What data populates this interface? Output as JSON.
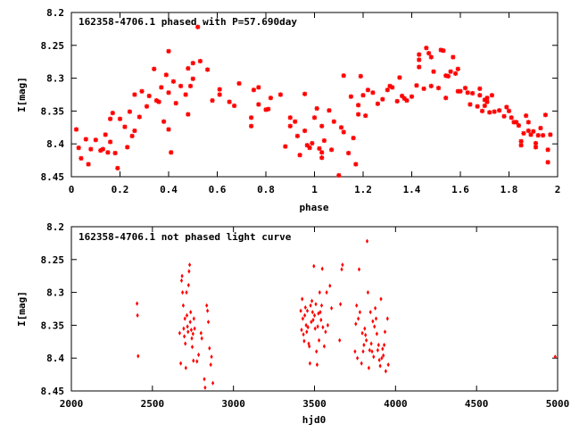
{
  "chart_data": [
    {
      "type": "scatter",
      "title": "162358-4706.1 phased with P=57.690day",
      "xlabel": "phase",
      "ylabel": "I[mag]",
      "xlim": [
        0,
        2
      ],
      "ylim": [
        8.2,
        8.45
      ],
      "y_inverted": true,
      "xticks": [
        0,
        0.2,
        0.4,
        0.6,
        0.8,
        1,
        1.2,
        1.4,
        1.6,
        1.8,
        2
      ],
      "xtick_labels": [
        "0",
        "0.2",
        "0.4",
        "0.6",
        "0.8",
        "1",
        "1.2",
        "1.4",
        "1.6",
        "1.8",
        "2"
      ],
      "yticks": [
        8.2,
        8.25,
        8.3,
        8.35,
        8.4,
        8.45
      ],
      "ytick_labels": [
        "8.2",
        "8.25",
        "8.3",
        "8.35",
        "8.4",
        "8.45"
      ],
      "grid": false,
      "marker": "star",
      "color": "#ff0000",
      "points": [
        [
          0.02,
          8.378
        ],
        [
          0.03,
          8.406
        ],
        [
          0.04,
          8.422
        ],
        [
          0.06,
          8.393
        ],
        [
          0.07,
          8.431
        ],
        [
          0.08,
          8.408
        ],
        [
          0.1,
          8.394
        ],
        [
          0.12,
          8.41
        ],
        [
          0.13,
          8.408
        ],
        [
          0.14,
          8.386
        ],
        [
          0.15,
          8.413
        ],
        [
          0.16,
          8.362
        ],
        [
          0.16,
          8.397
        ],
        [
          0.17,
          8.353
        ],
        [
          0.18,
          8.414
        ],
        [
          0.19,
          8.437
        ],
        [
          0.2,
          8.362
        ],
        [
          0.22,
          8.374
        ],
        [
          0.23,
          8.405
        ],
        [
          0.24,
          8.351
        ],
        [
          0.25,
          8.388
        ],
        [
          0.26,
          8.38
        ],
        [
          0.26,
          8.325
        ],
        [
          0.28,
          8.359
        ],
        [
          0.29,
          8.32
        ],
        [
          0.31,
          8.343
        ],
        [
          0.32,
          8.327
        ],
        [
          0.34,
          8.286
        ],
        [
          0.35,
          8.334
        ],
        [
          0.36,
          8.336
        ],
        [
          0.37,
          8.314
        ],
        [
          0.38,
          8.366
        ],
        [
          0.39,
          8.295
        ],
        [
          0.4,
          8.378
        ],
        [
          0.4,
          8.322
        ],
        [
          0.4,
          8.259
        ],
        [
          0.41,
          8.413
        ],
        [
          0.42,
          8.305
        ],
        [
          0.43,
          8.338
        ],
        [
          0.45,
          8.312
        ],
        [
          0.47,
          8.325
        ],
        [
          0.48,
          8.285
        ],
        [
          0.48,
          8.355
        ],
        [
          0.49,
          8.312
        ],
        [
          0.5,
          8.301
        ],
        [
          0.5,
          8.277
        ],
        [
          0.52,
          8.222
        ],
        [
          0.53,
          8.274
        ],
        [
          0.56,
          8.287
        ],
        [
          0.58,
          8.334
        ],
        [
          0.61,
          8.317
        ],
        [
          0.61,
          8.325
        ],
        [
          0.65,
          8.336
        ],
        [
          0.67,
          8.342
        ],
        [
          0.69,
          8.308
        ],
        [
          0.74,
          8.36
        ],
        [
          0.74,
          8.373
        ],
        [
          0.75,
          8.318
        ],
        [
          0.77,
          8.314
        ],
        [
          0.77,
          8.34
        ],
        [
          0.8,
          8.348
        ],
        [
          0.81,
          8.347
        ],
        [
          0.82,
          8.33
        ],
        [
          0.86,
          8.325
        ],
        [
          0.88,
          8.404
        ],
        [
          0.9,
          8.36
        ],
        [
          0.9,
          8.373
        ],
        [
          0.92,
          8.366
        ],
        [
          0.93,
          8.388
        ],
        [
          0.94,
          8.417
        ],
        [
          0.96,
          8.324
        ],
        [
          0.96,
          8.38
        ],
        [
          0.97,
          8.402
        ],
        [
          0.98,
          8.406
        ],
        [
          0.99,
          8.399
        ],
        [
          1.0,
          8.36
        ],
        [
          1.01,
          8.346
        ],
        [
          1.02,
          8.407
        ],
        [
          1.03,
          8.373
        ],
        [
          1.03,
          8.413
        ],
        [
          1.03,
          8.421
        ],
        [
          1.04,
          8.395
        ],
        [
          1.06,
          8.349
        ],
        [
          1.07,
          8.409
        ],
        [
          1.08,
          8.366
        ],
        [
          1.1,
          8.448
        ],
        [
          1.11,
          8.375
        ],
        [
          1.12,
          8.382
        ],
        [
          1.12,
          8.296
        ],
        [
          1.14,
          8.414
        ],
        [
          1.15,
          8.328
        ],
        [
          1.16,
          8.391
        ],
        [
          1.17,
          8.431
        ],
        [
          1.18,
          8.355
        ],
        [
          1.18,
          8.341
        ],
        [
          1.19,
          8.297
        ],
        [
          1.2,
          8.326
        ],
        [
          1.21,
          8.357
        ],
        [
          1.22,
          8.318
        ],
        [
          1.24,
          8.322
        ],
        [
          1.26,
          8.339
        ],
        [
          1.28,
          8.332
        ],
        [
          1.3,
          8.318
        ],
        [
          1.31,
          8.312
        ],
        [
          1.32,
          8.314
        ],
        [
          1.34,
          8.335
        ],
        [
          1.35,
          8.299
        ],
        [
          1.36,
          8.327
        ],
        [
          1.37,
          8.331
        ],
        [
          1.38,
          8.334
        ],
        [
          1.4,
          8.328
        ],
        [
          1.42,
          8.311
        ],
        [
          1.43,
          8.264
        ],
        [
          1.43,
          8.283
        ],
        [
          1.43,
          8.272
        ],
        [
          1.45,
          8.316
        ],
        [
          1.46,
          8.254
        ],
        [
          1.47,
          8.262
        ],
        [
          1.48,
          8.268
        ],
        [
          1.48,
          8.312
        ],
        [
          1.49,
          8.29
        ],
        [
          1.51,
          8.315
        ],
        [
          1.52,
          8.257
        ],
        [
          1.53,
          8.258
        ],
        [
          1.54,
          8.296
        ],
        [
          1.54,
          8.33
        ],
        [
          1.55,
          8.297
        ],
        [
          1.56,
          8.29
        ],
        [
          1.57,
          8.268
        ],
        [
          1.58,
          8.293
        ],
        [
          1.59,
          8.32
        ],
        [
          1.59,
          8.286
        ],
        [
          1.6,
          8.32
        ],
        [
          1.62,
          8.315
        ],
        [
          1.63,
          8.322
        ],
        [
          1.64,
          8.34
        ],
        [
          1.65,
          8.323
        ],
        [
          1.67,
          8.343
        ],
        [
          1.68,
          8.326
        ],
        [
          1.68,
          8.316
        ],
        [
          1.69,
          8.35
        ],
        [
          1.7,
          8.333
        ],
        [
          1.7,
          8.342
        ],
        [
          1.71,
          8.336
        ],
        [
          1.71,
          8.33
        ],
        [
          1.72,
          8.352
        ],
        [
          1.73,
          8.326
        ],
        [
          1.74,
          8.351
        ],
        [
          1.76,
          8.349
        ],
        [
          1.78,
          8.358
        ],
        [
          1.79,
          8.344
        ],
        [
          1.8,
          8.35
        ],
        [
          1.81,
          8.36
        ],
        [
          1.82,
          8.367
        ],
        [
          1.83,
          8.367
        ],
        [
          1.84,
          8.372
        ],
        [
          1.85,
          8.396
        ],
        [
          1.85,
          8.402
        ],
        [
          1.86,
          8.384
        ],
        [
          1.87,
          8.357
        ],
        [
          1.88,
          8.367
        ],
        [
          1.88,
          8.38
        ],
        [
          1.89,
          8.386
        ],
        [
          1.9,
          8.381
        ],
        [
          1.91,
          8.399
        ],
        [
          1.91,
          8.405
        ],
        [
          1.92,
          8.387
        ],
        [
          1.93,
          8.376
        ],
        [
          1.94,
          8.387
        ],
        [
          1.95,
          8.356
        ],
        [
          1.96,
          8.409
        ],
        [
          1.96,
          8.428
        ],
        [
          1.97,
          8.386
        ]
      ]
    },
    {
      "type": "scatter",
      "title": "162358-4706.1 not phased light curve",
      "xlabel": "hjd0",
      "ylabel": "I[mag]",
      "xlim": [
        2000,
        5000
      ],
      "ylim": [
        8.2,
        8.45
      ],
      "y_inverted": true,
      "xticks": [
        2000,
        2500,
        3000,
        3500,
        4000,
        4500,
        5000
      ],
      "xtick_labels": [
        "2000",
        "2500",
        "3000",
        "3500",
        "4000",
        "4500",
        "5000"
      ],
      "yticks": [
        8.2,
        8.25,
        8.3,
        8.35,
        8.4,
        8.45
      ],
      "ytick_labels": [
        "8.2",
        "8.25",
        "8.3",
        "8.35",
        "8.4",
        "8.45"
      ],
      "grid": false,
      "marker": "diamond",
      "color": "#ff0000",
      "points": [
        [
          2405,
          8.317
        ],
        [
          2408,
          8.335
        ],
        [
          2412,
          8.397
        ],
        [
          2668,
          8.362
        ],
        [
          2675,
          8.408
        ],
        [
          2680,
          8.282
        ],
        [
          2683,
          8.275
        ],
        [
          2686,
          8.3
        ],
        [
          2690,
          8.32
        ],
        [
          2693,
          8.355
        ],
        [
          2697,
          8.367
        ],
        [
          2700,
          8.34
        ],
        [
          2703,
          8.378
        ],
        [
          2706,
          8.415
        ],
        [
          2710,
          8.3
        ],
        [
          2713,
          8.335
        ],
        [
          2716,
          8.352
        ],
        [
          2720,
          8.36
        ],
        [
          2723,
          8.289
        ],
        [
          2726,
          8.268
        ],
        [
          2730,
          8.258
        ],
        [
          2733,
          8.345
        ],
        [
          2736,
          8.33
        ],
        [
          2740,
          8.357
        ],
        [
          2743,
          8.37
        ],
        [
          2746,
          8.383
        ],
        [
          2750,
          8.363
        ],
        [
          2753,
          8.404
        ],
        [
          2756,
          8.34
        ],
        [
          2760,
          8.355
        ],
        [
          2775,
          8.405
        ],
        [
          2785,
          8.395
        ],
        [
          2800,
          8.362
        ],
        [
          2805,
          8.37
        ],
        [
          2820,
          8.432
        ],
        [
          2825,
          8.445
        ],
        [
          2835,
          8.32
        ],
        [
          2840,
          8.328
        ],
        [
          2845,
          8.345
        ],
        [
          2852,
          8.385
        ],
        [
          2860,
          8.41
        ],
        [
          2865,
          8.398
        ],
        [
          2873,
          8.438
        ],
        [
          3415,
          8.328
        ],
        [
          3420,
          8.357
        ],
        [
          3424,
          8.31
        ],
        [
          3428,
          8.34
        ],
        [
          3432,
          8.364
        ],
        [
          3436,
          8.374
        ],
        [
          3440,
          8.335
        ],
        [
          3444,
          8.323
        ],
        [
          3448,
          8.35
        ],
        [
          3452,
          8.36
        ],
        [
          3456,
          8.328
        ],
        [
          3460,
          8.353
        ],
        [
          3464,
          8.378
        ],
        [
          3468,
          8.382
        ],
        [
          3472,
          8.408
        ],
        [
          3476,
          8.32
        ],
        [
          3480,
          8.345
        ],
        [
          3484,
          8.313
        ],
        [
          3488,
          8.33
        ],
        [
          3492,
          8.342
        ],
        [
          3496,
          8.26
        ],
        [
          3500,
          8.335
        ],
        [
          3504,
          8.355
        ],
        [
          3508,
          8.318
        ],
        [
          3512,
          8.39
        ],
        [
          3516,
          8.41
        ],
        [
          3520,
          8.352
        ],
        [
          3524,
          8.332
        ],
        [
          3528,
          8.373
        ],
        [
          3532,
          8.3
        ],
        [
          3536,
          8.33
        ],
        [
          3540,
          8.342
        ],
        [
          3544,
          8.32
        ],
        [
          3548,
          8.264
        ],
        [
          3552,
          8.353
        ],
        [
          3560,
          8.382
        ],
        [
          3568,
          8.36
        ],
        [
          3575,
          8.3
        ],
        [
          3582,
          8.35
        ],
        [
          3595,
          8.29
        ],
        [
          3605,
          8.324
        ],
        [
          3655,
          8.373
        ],
        [
          3660,
          8.318
        ],
        [
          3668,
          8.265
        ],
        [
          3673,
          8.258
        ],
        [
          3750,
          8.39
        ],
        [
          3755,
          8.348
        ],
        [
          3760,
          8.32
        ],
        [
          3765,
          8.4
        ],
        [
          3770,
          8.34
        ],
        [
          3775,
          8.265
        ],
        [
          3780,
          8.33
        ],
        [
          3790,
          8.408
        ],
        [
          3795,
          8.362
        ],
        [
          3800,
          8.39
        ],
        [
          3805,
          8.38
        ],
        [
          3810,
          8.355
        ],
        [
          3815,
          8.365
        ],
        [
          3820,
          8.373
        ],
        [
          3825,
          8.222
        ],
        [
          3830,
          8.3
        ],
        [
          3835,
          8.415
        ],
        [
          3840,
          8.388
        ],
        [
          3845,
          8.33
        ],
        [
          3850,
          8.378
        ],
        [
          3855,
          8.39
        ],
        [
          3860,
          8.344
        ],
        [
          3865,
          8.398
        ],
        [
          3870,
          8.352
        ],
        [
          3875,
          8.324
        ],
        [
          3880,
          8.34
        ],
        [
          3885,
          8.363
        ],
        [
          3890,
          8.388
        ],
        [
          3895,
          8.38
        ],
        [
          3900,
          8.403
        ],
        [
          3905,
          8.412
        ],
        [
          3910,
          8.31
        ],
        [
          3915,
          8.4
        ],
        [
          3920,
          8.386
        ],
        [
          3925,
          8.396
        ],
        [
          3930,
          8.38
        ],
        [
          3935,
          8.36
        ],
        [
          3940,
          8.42
        ],
        [
          3950,
          8.34
        ],
        [
          3955,
          8.41
        ],
        [
          4985,
          8.398
        ]
      ]
    }
  ]
}
